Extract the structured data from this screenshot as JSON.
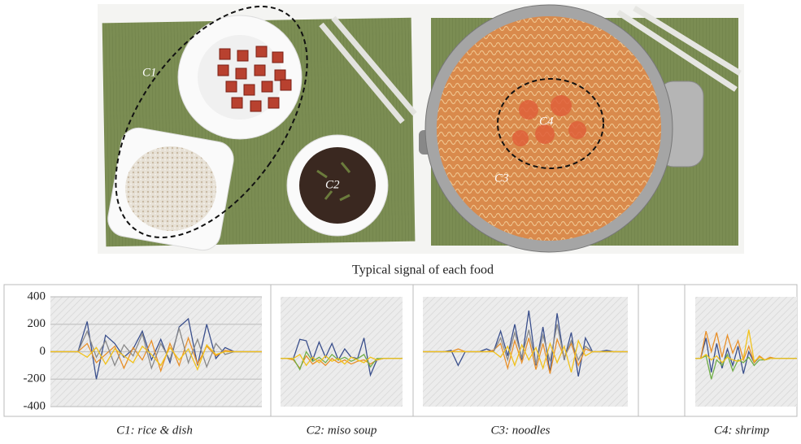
{
  "figure": {
    "caption": "Typical signal of each food",
    "photo_labels": [
      "C1",
      "C2",
      "C3",
      "C4"
    ]
  },
  "chart_data": [
    {
      "type": "line",
      "xlabel": "C1: rice & dish",
      "ylim": [
        -400,
        400
      ],
      "yticks": [
        400,
        200,
        0,
        -200,
        -400
      ],
      "grid": true,
      "series": [
        {
          "color": "#3a4f8c",
          "values": [
            0,
            0,
            0,
            0,
            220,
            -200,
            120,
            60,
            -40,
            20,
            150,
            -60,
            90,
            -80,
            180,
            240,
            -100,
            200,
            -50,
            30,
            0,
            0,
            0,
            0
          ]
        },
        {
          "color": "#e8902a",
          "values": [
            0,
            0,
            0,
            0,
            60,
            -80,
            -20,
            40,
            -120,
            30,
            -60,
            80,
            -140,
            60,
            -100,
            100,
            -90,
            40,
            -30,
            10,
            0,
            0,
            0,
            0
          ]
        },
        {
          "color": "#8a8a8a",
          "values": [
            0,
            0,
            0,
            0,
            150,
            -40,
            80,
            -100,
            50,
            -30,
            130,
            -120,
            60,
            -60,
            170,
            -80,
            90,
            -110,
            60,
            -20,
            0,
            0,
            0,
            0
          ]
        },
        {
          "color": "#f2c21b",
          "values": [
            0,
            0,
            0,
            0,
            -40,
            30,
            -90,
            20,
            -30,
            -80,
            40,
            -20,
            -100,
            30,
            -60,
            20,
            -130,
            50,
            -20,
            0,
            0,
            0,
            0,
            0
          ]
        }
      ]
    },
    {
      "type": "line",
      "xlabel": "C2: miso soup",
      "ylim": [
        -400,
        400
      ],
      "series": [
        {
          "color": "#3a4f8c",
          "values": [
            -50,
            -50,
            -50,
            90,
            80,
            -60,
            70,
            -40,
            60,
            -60,
            20,
            -40,
            -50,
            100,
            -170,
            -60,
            -50,
            -50,
            -50,
            -50
          ]
        },
        {
          "color": "#e8902a",
          "values": [
            -50,
            -50,
            -60,
            -120,
            -30,
            -90,
            -60,
            -100,
            -50,
            -80,
            -60,
            -90,
            -70,
            -60,
            -90,
            -60,
            -50,
            -50,
            -50,
            -50
          ]
        },
        {
          "color": "#70ad47",
          "values": [
            -50,
            -50,
            -50,
            -130,
            0,
            -70,
            -40,
            -80,
            -20,
            -60,
            -40,
            -70,
            -50,
            -20,
            -110,
            -50,
            -50,
            -50,
            -50,
            -50
          ]
        },
        {
          "color": "#f2c21b",
          "values": [
            -50,
            -50,
            -50,
            -20,
            -100,
            -40,
            -80,
            -30,
            -70,
            -50,
            -90,
            -40,
            -60,
            -80,
            -40,
            -60,
            -50,
            -50,
            -50,
            -50
          ]
        }
      ]
    },
    {
      "type": "line",
      "xlabel": "C3: noodles",
      "ylim": [
        -400,
        400
      ],
      "series": [
        {
          "color": "#3a4f8c",
          "values": [
            0,
            0,
            0,
            0,
            10,
            -100,
            0,
            0,
            0,
            20,
            0,
            150,
            -30,
            200,
            -60,
            300,
            -100,
            180,
            -150,
            280,
            -60,
            140,
            -180,
            100,
            0,
            0,
            10,
            0,
            0,
            0
          ]
        },
        {
          "color": "#e8902a",
          "values": [
            0,
            0,
            0,
            0,
            0,
            20,
            0,
            0,
            0,
            0,
            10,
            60,
            -120,
            80,
            -80,
            100,
            -130,
            60,
            -160,
            90,
            -40,
            60,
            -100,
            20,
            0,
            0,
            0,
            0,
            0,
            0
          ]
        },
        {
          "color": "#8a8a8a",
          "values": [
            0,
            0,
            0,
            0,
            0,
            0,
            0,
            0,
            0,
            0,
            0,
            100,
            -60,
            140,
            -40,
            160,
            -90,
            120,
            -70,
            200,
            -50,
            80,
            -60,
            40,
            0,
            0,
            0,
            0,
            0,
            0
          ]
        },
        {
          "color": "#f2c21b",
          "values": [
            0,
            0,
            0,
            0,
            0,
            0,
            0,
            0,
            0,
            0,
            0,
            -40,
            40,
            -100,
            50,
            -60,
            30,
            -120,
            60,
            -80,
            40,
            -150,
            80,
            -30,
            0,
            0,
            0,
            0,
            0,
            0
          ]
        }
      ]
    },
    {
      "type": "line",
      "xlabel": "C4: shrimp",
      "ylim": [
        -400,
        400
      ],
      "series": [
        {
          "color": "#3a4f8c",
          "values": [
            -50,
            -50,
            100,
            -150,
            60,
            -120,
            20,
            -100,
            40,
            -160,
            0,
            -80,
            -40,
            -60,
            -50,
            -50,
            -50,
            -50,
            -50,
            -50
          ]
        },
        {
          "color": "#e8902a",
          "values": [
            -50,
            -50,
            150,
            0,
            140,
            -40,
            120,
            -10,
            80,
            -60,
            40,
            -80,
            -30,
            -60,
            -40,
            -50,
            -50,
            -50,
            -50,
            -50
          ]
        },
        {
          "color": "#70ad47",
          "values": [
            -50,
            -50,
            -30,
            -200,
            -60,
            -100,
            -20,
            -140,
            -60,
            -80,
            -40,
            -100,
            -60,
            -60,
            -50,
            -50,
            -50,
            -50,
            -50,
            -50
          ]
        },
        {
          "color": "#f2c21b",
          "values": [
            -50,
            -50,
            -20,
            -60,
            -30,
            -80,
            -40,
            -60,
            -70,
            -50,
            160,
            -70,
            -40,
            -60,
            -50,
            -50,
            -50,
            -50,
            -50,
            -50
          ]
        }
      ]
    }
  ]
}
